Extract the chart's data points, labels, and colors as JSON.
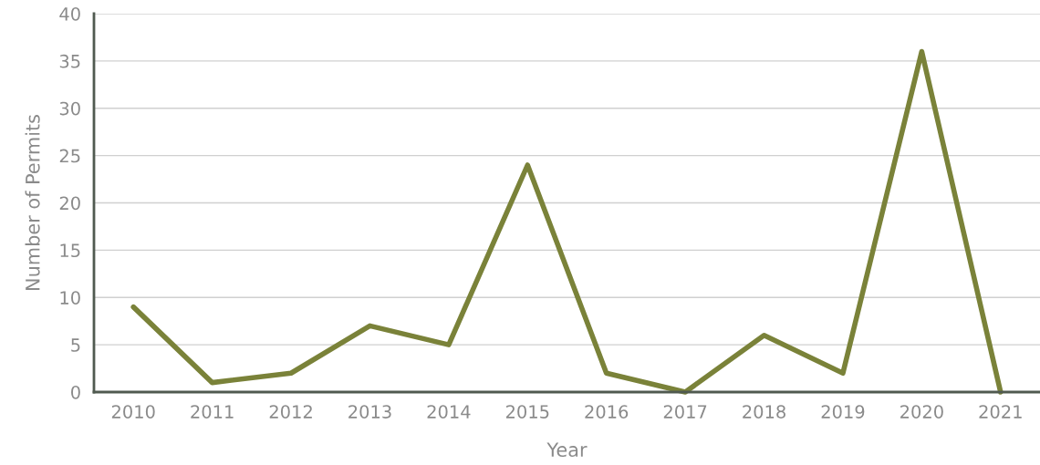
{
  "chart_data": {
    "type": "line",
    "xlabel": "Year",
    "ylabel": "Number of Permits",
    "categories": [
      "2010",
      "2011",
      "2012",
      "2013",
      "2014",
      "2015",
      "2016",
      "2017",
      "2018",
      "2019",
      "2020",
      "2021"
    ],
    "series": [
      {
        "color": "#7a8239",
        "values": [
          9,
          1,
          2,
          7,
          5,
          24,
          2,
          0,
          6,
          2,
          36,
          0
        ]
      }
    ],
    "ylim": [
      0,
      40
    ],
    "yticks": [
      0,
      5,
      10,
      15,
      20,
      25,
      30,
      35,
      40
    ],
    "grid": "y",
    "marker": "none",
    "line_style": "solid"
  }
}
